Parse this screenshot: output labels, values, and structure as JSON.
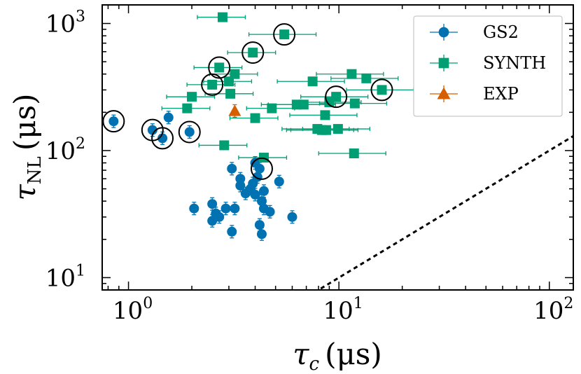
{
  "chart_data": {
    "type": "scatter",
    "xscale": "log",
    "yscale": "log",
    "xlim": [
      0.75,
      130
    ],
    "ylim": [
      8,
      1400
    ],
    "xlabel": {
      "symbol": "τ",
      "subscript": "c",
      "unit": "(μs)"
    },
    "ylabel": {
      "symbol": "τ",
      "subscript": "NL",
      "unit": "(μs)"
    },
    "xticks": [
      {
        "value": 1,
        "base": "10",
        "exp": "0"
      },
      {
        "value": 10,
        "base": "10",
        "exp": "1"
      },
      {
        "value": 100,
        "base": "10",
        "exp": "2"
      }
    ],
    "yticks": [
      {
        "value": 10,
        "base": "10",
        "exp": "1"
      },
      {
        "value": 100,
        "base": "10",
        "exp": "2"
      },
      {
        "value": 1000,
        "base": "10",
        "exp": "3"
      }
    ],
    "legend": {
      "position": "top-right"
    },
    "reference_line": {
      "label": "τNL = τc",
      "x": [
        8.2,
        130
      ],
      "y": [
        8.2,
        130
      ],
      "style": "dotted"
    },
    "series": [
      {
        "name": "GS2",
        "marker": "circle",
        "color": "#0072B2",
        "points": [
          [
            0.85,
            170
          ],
          [
            1.3,
            145
          ],
          [
            1.45,
            125
          ],
          [
            1.55,
            182
          ],
          [
            1.95,
            140
          ],
          [
            2.05,
            35
          ],
          [
            2.5,
            38
          ],
          [
            2.5,
            28
          ],
          [
            2.6,
            32
          ],
          [
            2.7,
            30
          ],
          [
            2.9,
            35
          ],
          [
            3.1,
            23
          ],
          [
            3.1,
            72
          ],
          [
            3.2,
            35
          ],
          [
            3.4,
            53
          ],
          [
            3.4,
            60
          ],
          [
            3.6,
            46
          ],
          [
            3.8,
            50
          ],
          [
            3.9,
            55
          ],
          [
            4.0,
            45
          ],
          [
            4.0,
            80
          ],
          [
            4.1,
            62
          ],
          [
            4.2,
            26
          ],
          [
            4.3,
            22
          ],
          [
            4.2,
            72
          ],
          [
            4.3,
            40
          ],
          [
            4.4,
            48
          ],
          [
            4.4,
            35
          ],
          [
            4.7,
            33
          ],
          [
            5.2,
            57
          ],
          [
            6.0,
            30
          ]
        ]
      },
      {
        "name": "SYNTH",
        "marker": "square",
        "color": "#009E73",
        "points": [
          [
            1.9,
            215
          ],
          [
            2.0,
            265
          ],
          [
            2.5,
            330
          ],
          [
            2.7,
            450
          ],
          [
            2.8,
            1120
          ],
          [
            2.85,
            110
          ],
          [
            3.0,
            350
          ],
          [
            3.05,
            280
          ],
          [
            3.2,
            400
          ],
          [
            3.9,
            590
          ],
          [
            4.0,
            180
          ],
          [
            4.4,
            88
          ],
          [
            4.8,
            215
          ],
          [
            5.5,
            820
          ],
          [
            6.3,
            230
          ],
          [
            6.8,
            230
          ],
          [
            7.5,
            350
          ],
          [
            7.9,
            148
          ],
          [
            8.3,
            145
          ],
          [
            8.6,
            190
          ],
          [
            8.7,
            145
          ],
          [
            9.0,
            240
          ],
          [
            9.7,
            265
          ],
          [
            9.9,
            148
          ],
          [
            11.5,
            400
          ],
          [
            11.8,
            95
          ],
          [
            11.9,
            235
          ],
          [
            13.5,
            370
          ],
          [
            16.0,
            300
          ]
        ]
      },
      {
        "name": "EXP",
        "marker": "triangle",
        "color": "#D55E00",
        "points": [
          [
            3.2,
            205
          ]
        ]
      }
    ],
    "highlighted": [
      [
        0.85,
        170
      ],
      [
        1.3,
        145
      ],
      [
        1.45,
        125
      ],
      [
        1.95,
        140
      ],
      [
        2.5,
        330
      ],
      [
        2.7,
        450
      ],
      [
        3.9,
        590
      ],
      [
        4.3,
        72
      ],
      [
        5.5,
        820
      ],
      [
        9.7,
        265
      ],
      [
        16.0,
        300
      ]
    ]
  }
}
